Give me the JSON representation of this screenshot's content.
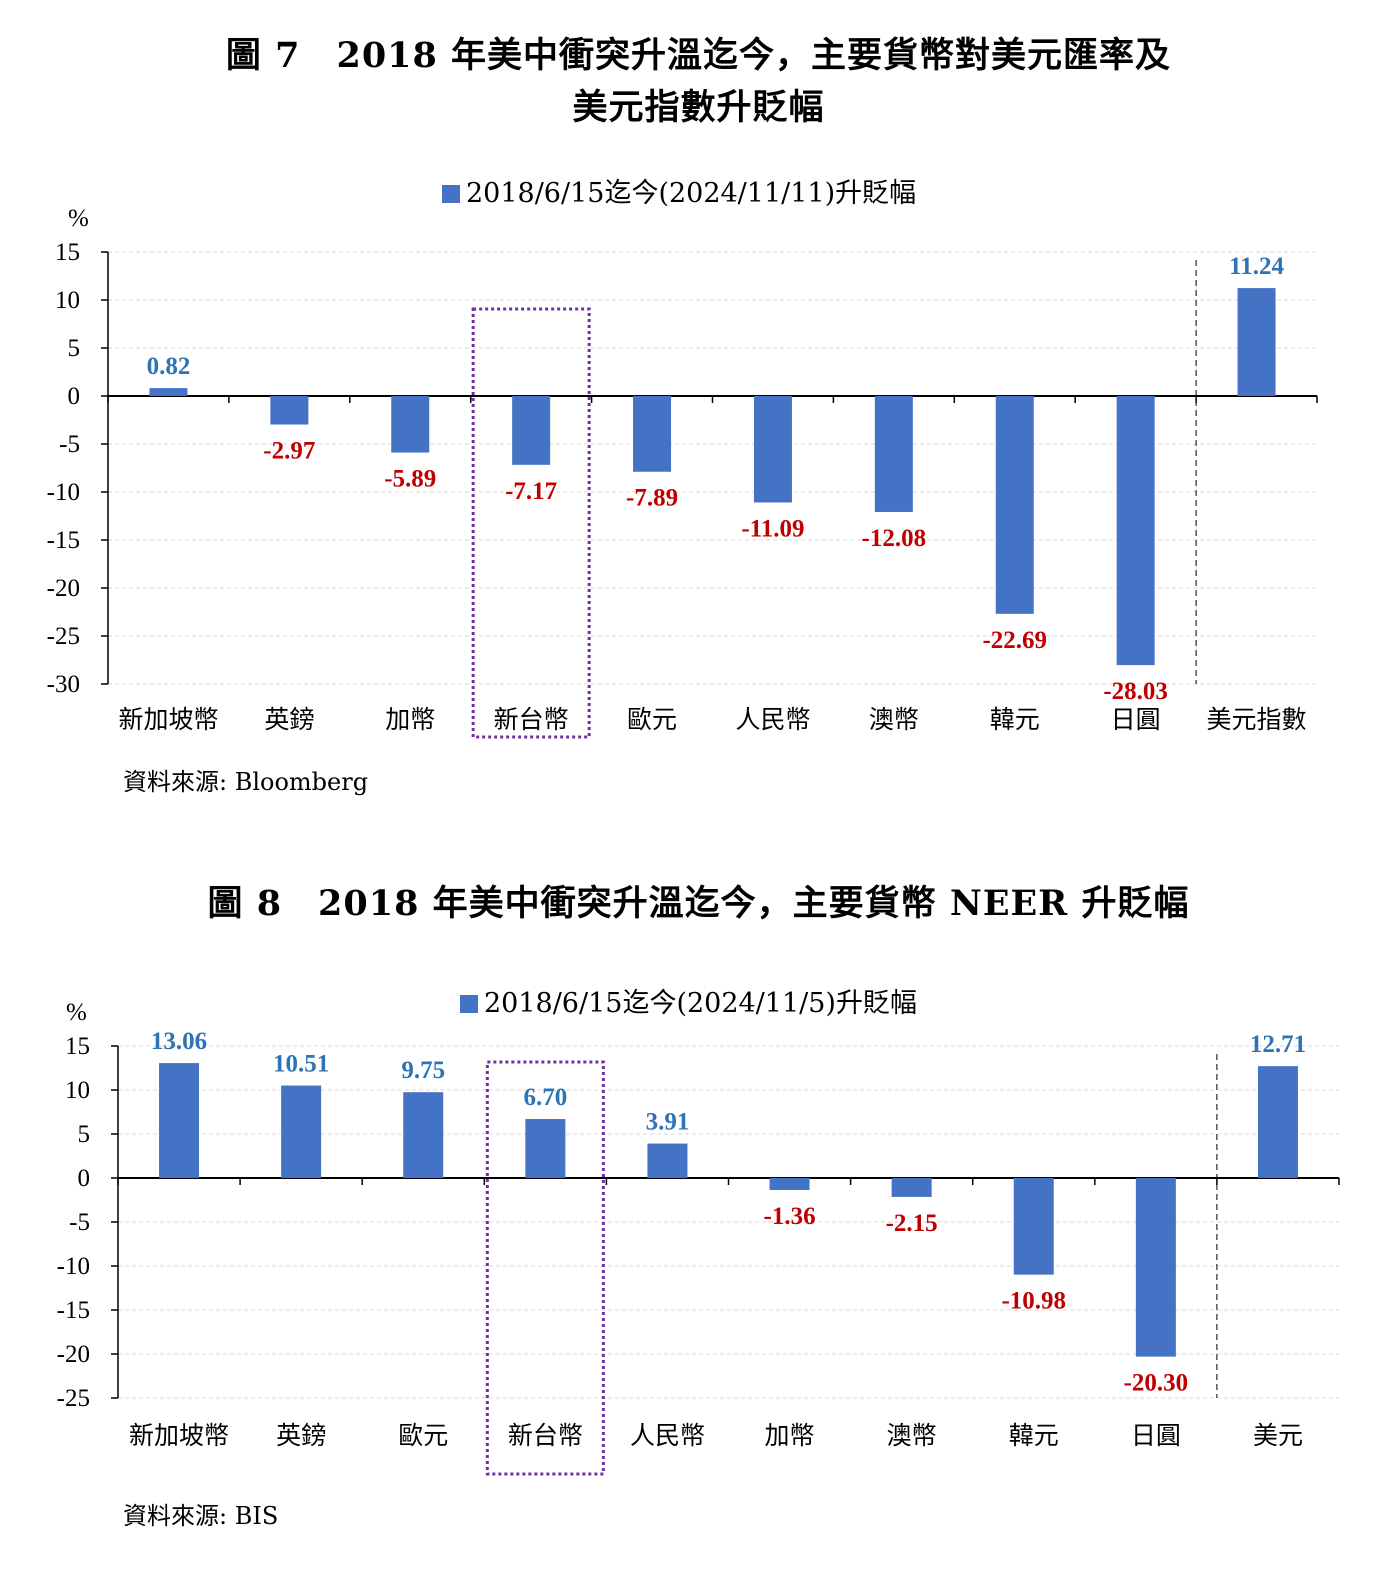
{
  "figure7": {
    "title_line1": "圖 7　2018 年美中衝突升溫迄今，主要貨幣對美元匯率及",
    "title_line2": "美元指數升貶幅",
    "source": "資料來源: Bloomberg"
  },
  "figure8": {
    "title": "圖 8　2018 年美中衝突升溫迄今，主要貨幣 NEER 升貶幅",
    "source": "資料來源: BIS"
  },
  "colors": {
    "bar": "#4472C4",
    "positive_label": "#2E74B5",
    "negative_label": "#C00000",
    "highlight_box": "#7030A0",
    "grid": "#D9D9D9"
  },
  "chart_data": [
    {
      "type": "bar",
      "legend": "2018/6/15迄今(2024/11/11)升貶幅",
      "legend_position": "top-center",
      "ylabel": "%",
      "ylim": [
        -30,
        15
      ],
      "yticks": [
        15,
        10,
        5,
        0,
        -5,
        -10,
        -15,
        -20,
        -25,
        -30
      ],
      "grid": true,
      "categories": [
        "新加坡幣",
        "英鎊",
        "加幣",
        "新台幣",
        "歐元",
        "人民幣",
        "澳幣",
        "韓元",
        "日圓",
        "美元指數"
      ],
      "values": [
        0.82,
        -2.97,
        -5.89,
        -7.17,
        -7.89,
        -11.09,
        -12.08,
        -22.69,
        -28.03,
        11.24
      ],
      "labels": [
        "0.82",
        "-2.97",
        "-5.89",
        "-7.17",
        "-7.89",
        "-11.09",
        "-12.08",
        "-22.69",
        "-28.03",
        "11.24"
      ],
      "highlight_category": "新台幣",
      "separator_before": "美元指數"
    },
    {
      "type": "bar",
      "legend": "2018/6/15迄今(2024/11/5)升貶幅",
      "legend_position": "top-center",
      "ylabel": "%",
      "ylim": [
        -25,
        15
      ],
      "yticks": [
        15,
        10,
        5,
        0,
        -5,
        -10,
        -15,
        -20,
        -25
      ],
      "grid": true,
      "categories": [
        "新加坡幣",
        "英鎊",
        "歐元",
        "新台幣",
        "人民幣",
        "加幣",
        "澳幣",
        "韓元",
        "日圓",
        "美元"
      ],
      "values": [
        13.06,
        10.51,
        9.75,
        6.7,
        3.91,
        -1.36,
        -2.15,
        -10.98,
        -20.3,
        12.71
      ],
      "labels": [
        "13.06",
        "10.51",
        "9.75",
        "6.70",
        "3.91",
        "-1.36",
        "-2.15",
        "-10.98",
        "-20.30",
        "12.71"
      ],
      "highlight_category": "新台幣",
      "separator_before": "美元"
    }
  ]
}
